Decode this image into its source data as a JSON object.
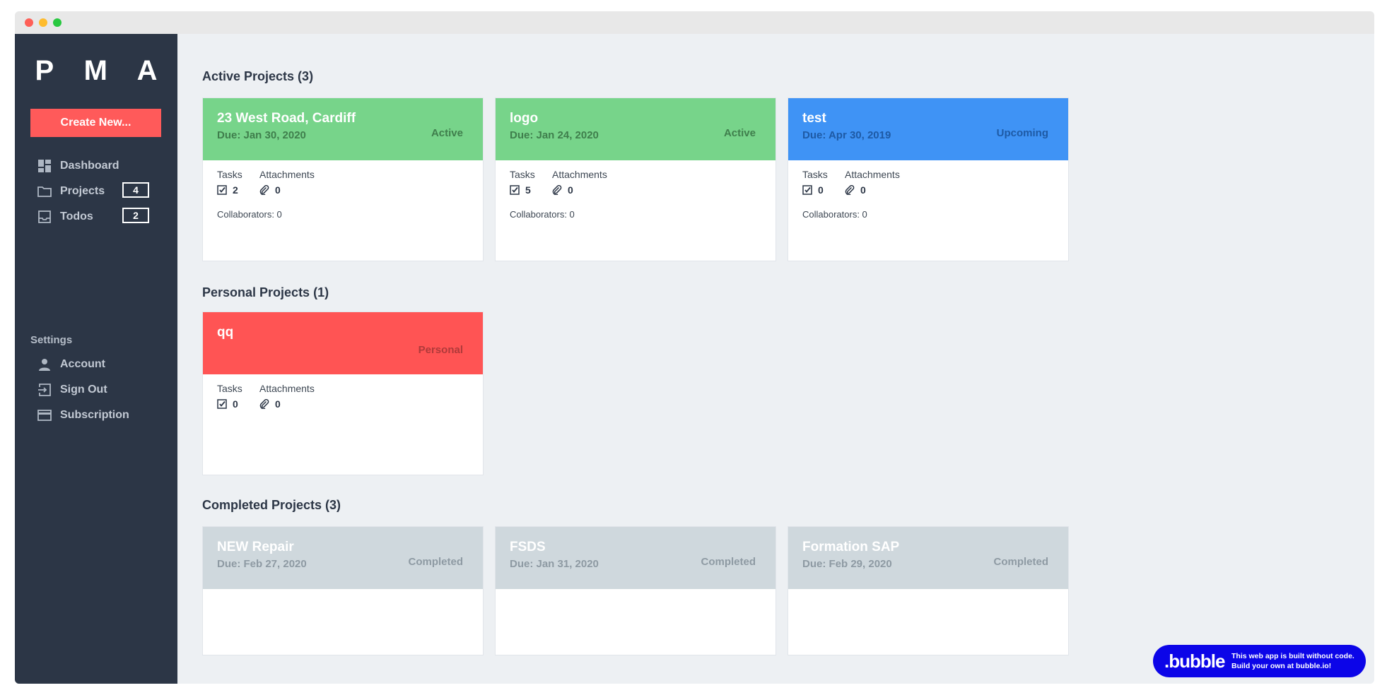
{
  "app": {
    "logo": "P M A",
    "create_button": "Create New..."
  },
  "sidebar": {
    "nav": [
      {
        "label": "Dashboard",
        "icon": "dashboard-icon"
      },
      {
        "label": "Projects",
        "icon": "folder-icon",
        "badge": "4"
      },
      {
        "label": "Todos",
        "icon": "inbox-icon",
        "badge": "2"
      }
    ],
    "settings_label": "Settings",
    "settings": [
      {
        "label": "Account",
        "icon": "person-icon"
      },
      {
        "label": "Sign Out",
        "icon": "sign-out-icon"
      },
      {
        "label": "Subscription",
        "icon": "credit-card-icon"
      }
    ]
  },
  "sections": {
    "active": {
      "title": "Active Projects (3)",
      "cards": [
        {
          "title": "23 West Road, Cardiff",
          "due": "Due: Jan 30, 2020",
          "status": "Active",
          "tasks_label": "Tasks",
          "attachments_label": "Attachments",
          "tasks": "2",
          "attachments": "0",
          "collaborators": "Collaborators: 0"
        },
        {
          "title": "logo",
          "due": "Due: Jan 24, 2020",
          "status": "Active",
          "tasks_label": "Tasks",
          "attachments_label": "Attachments",
          "tasks": "5",
          "attachments": "0",
          "collaborators": "Collaborators: 0"
        },
        {
          "title": "test",
          "due": "Due: Apr 30, 2019",
          "status": "Upcoming",
          "tasks_label": "Tasks",
          "attachments_label": "Attachments",
          "tasks": "0",
          "attachments": "0",
          "collaborators": "Collaborators: 0"
        }
      ]
    },
    "personal": {
      "title": "Personal Projects (1)",
      "cards": [
        {
          "title": "qq",
          "status": "Personal",
          "tasks_label": "Tasks",
          "attachments_label": "Attachments",
          "tasks": "0",
          "attachments": "0"
        }
      ]
    },
    "completed": {
      "title": "Completed Projects (3)",
      "cards": [
        {
          "title": "NEW Repair",
          "due": "Due: Feb 27, 2020",
          "status": "Completed"
        },
        {
          "title": "FSDS",
          "due": "Due: Jan 31, 2020",
          "status": "Completed"
        },
        {
          "title": "Formation SAP",
          "due": "Due: Feb 29, 2020",
          "status": "Completed"
        }
      ]
    }
  },
  "bubble_badge": {
    "brand": ".bubble",
    "line1": "This web app is built without code.",
    "line2": "Build your own at bubble.io!"
  },
  "colors": {
    "sidebar": "#2c3646",
    "accent_red": "#ff5a5a",
    "active_green": "#77d48a",
    "upcoming_blue": "#3f93f5",
    "personal_red": "#ff5454",
    "completed_gray": "#cfd8dd",
    "bubble_blue": "#0c05e8"
  }
}
